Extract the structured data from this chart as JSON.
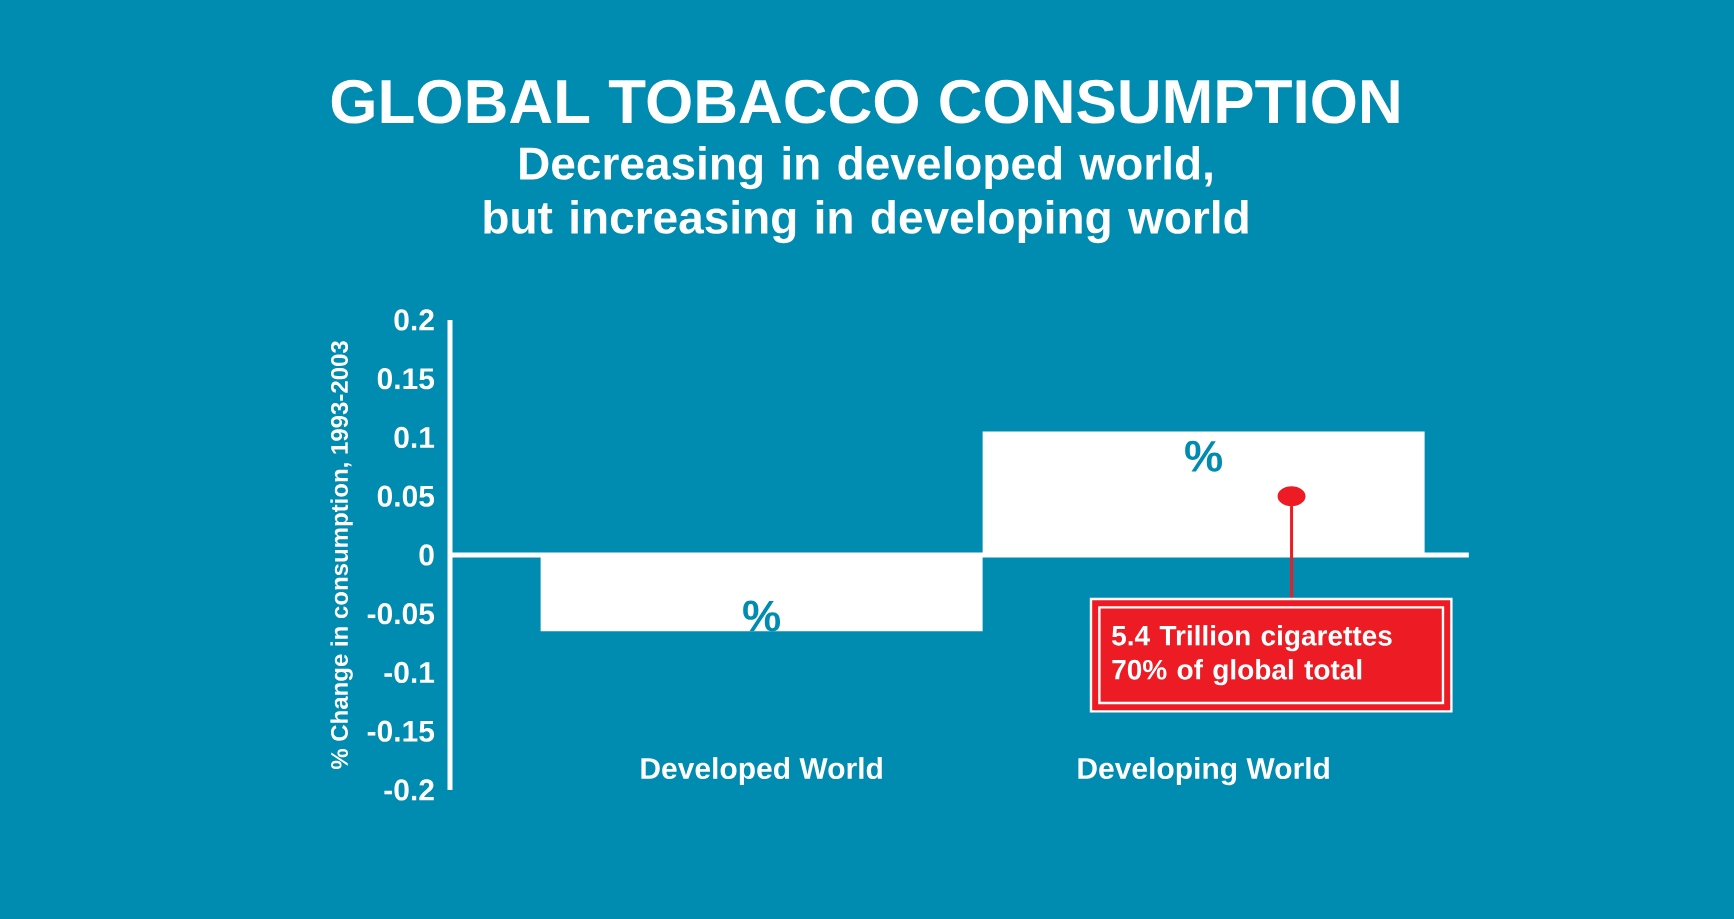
{
  "chart_data": {
    "type": "bar",
    "title": "GLOBAL TOBACCO CONSUMPTION",
    "subtitle": "Decreasing in developed world, but increasing in developing world",
    "ylabel": "% Change in consumption, 1993-2003",
    "categories": [
      "Developed World",
      "Developing World"
    ],
    "values": [
      -0.065,
      0.105
    ],
    "value_labels": [
      "%",
      "%"
    ],
    "color": "#ffffff",
    "ylim": [
      -0.2,
      0.2
    ],
    "yticks": [
      -0.2,
      -0.15,
      -0.1,
      -0.05,
      0,
      0.05,
      0.1,
      0.15,
      0.2
    ],
    "annotations": [
      "5.4 Trillion cigarettes 70% of global total"
    ]
  }
}
